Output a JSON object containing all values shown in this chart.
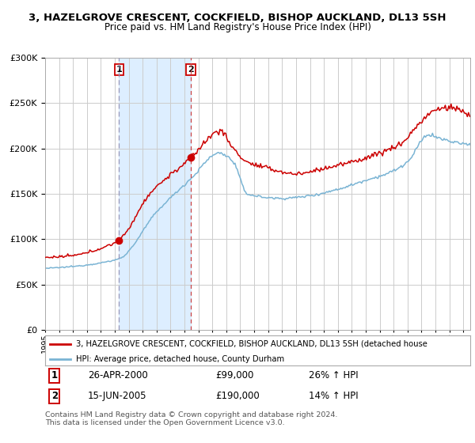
{
  "title": "3, HAZELGROVE CRESCENT, COCKFIELD, BISHOP AUCKLAND, DL13 5SH",
  "subtitle": "Price paid vs. HM Land Registry's House Price Index (HPI)",
  "legend_line1": "3, HAZELGROVE CRESCENT, COCKFIELD, BISHOP AUCKLAND, DL13 5SH (detached house",
  "legend_line2": "HPI: Average price, detached house, County Durham",
  "footer": "Contains HM Land Registry data © Crown copyright and database right 2024.\nThis data is licensed under the Open Government Licence v3.0.",
  "sale1_date": "26-APR-2000",
  "sale1_price": 99000,
  "sale1_hpi": "26% ↑ HPI",
  "sale2_date": "15-JUN-2005",
  "sale2_price": 190000,
  "sale2_hpi": "14% ↑ HPI",
  "hpi_color": "#7ab4d4",
  "price_color": "#cc0000",
  "sale_dot_color": "#cc0000",
  "shade_color": "#ddeeff",
  "vline1_color": "#9999bb",
  "vline2_color": "#cc4444",
  "bg_color": "#ffffff",
  "grid_color": "#cccccc",
  "ylim": [
    0,
    300000
  ],
  "yticks": [
    0,
    50000,
    100000,
    150000,
    200000,
    250000,
    300000
  ],
  "start_year": 1995,
  "end_year": 2025,
  "sale1_year": 2000.31,
  "sale2_year": 2005.46
}
